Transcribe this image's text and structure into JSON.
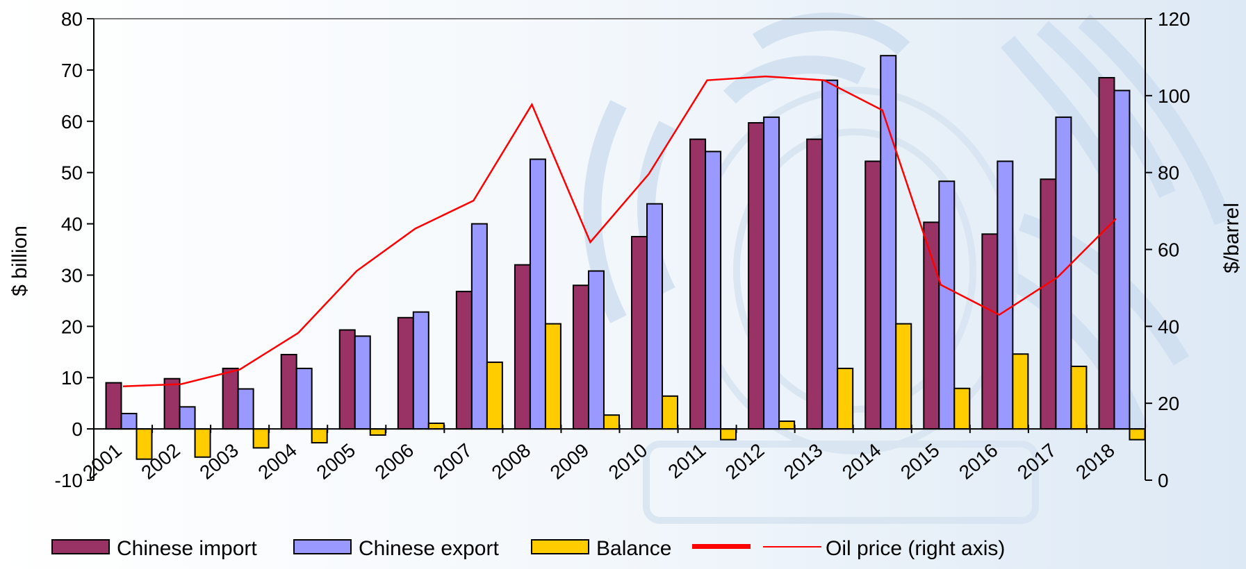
{
  "chart_data": {
    "type": "bar",
    "categories": [
      "2001",
      "2002",
      "2003",
      "2004",
      "2005",
      "2006",
      "2007",
      "2008",
      "2009",
      "2010",
      "2011",
      "2012",
      "2013",
      "2014",
      "2015",
      "2016",
      "2017",
      "2018"
    ],
    "series": [
      {
        "name": "Chinese import",
        "type": "bar",
        "axis": "left",
        "color": "#993366",
        "values": [
          9,
          9.8,
          11.8,
          14.5,
          19.3,
          21.7,
          26.8,
          32,
          28,
          37.5,
          56.5,
          59.7,
          56.5,
          52.2,
          40.3,
          38,
          48.7,
          68.5
        ]
      },
      {
        "name": "Chinese export",
        "type": "bar",
        "axis": "left",
        "color": "#9999ff",
        "values": [
          3,
          4.3,
          7.8,
          11.8,
          18.1,
          22.8,
          40,
          52.6,
          30.8,
          43.9,
          54.1,
          60.8,
          68,
          72.8,
          48.3,
          52.2,
          60.8,
          66
        ]
      },
      {
        "name": "Balance",
        "type": "bar",
        "axis": "left",
        "color": "#ffcc00",
        "values": [
          -5.9,
          -5.5,
          -3.7,
          -2.7,
          -1.2,
          1.1,
          13,
          20.5,
          2.7,
          6.4,
          -2.1,
          1.5,
          11.8,
          20.5,
          7.9,
          14.6,
          12.2,
          -2.1
        ]
      },
      {
        "name": "Oil price (right axis)",
        "type": "line",
        "axis": "right",
        "color": "#ff0000",
        "values": [
          24.4,
          25,
          28.8,
          38.3,
          54.4,
          65.4,
          72.7,
          97.7,
          61.9,
          79.6,
          104,
          105,
          104,
          96.2,
          50.8,
          43,
          52.8,
          68
        ]
      }
    ],
    "ylabel": "$ billion",
    "ylabel_right": "$/barrel",
    "ylim": [
      -10,
      80
    ],
    "y_ticks": [
      "80",
      "70",
      "60",
      "50",
      "40",
      "30",
      "20",
      "10",
      "0",
      "-10"
    ],
    "ylim_right": [
      0,
      120
    ],
    "y_right_ticks": [
      "120",
      "100",
      "80",
      "60",
      "40",
      "20",
      "0"
    ],
    "legend_position": "bottom",
    "legend": [
      "Chinese import",
      "Chinese export",
      "Balance",
      "",
      "Oil price (right axis)"
    ],
    "grid": false
  }
}
